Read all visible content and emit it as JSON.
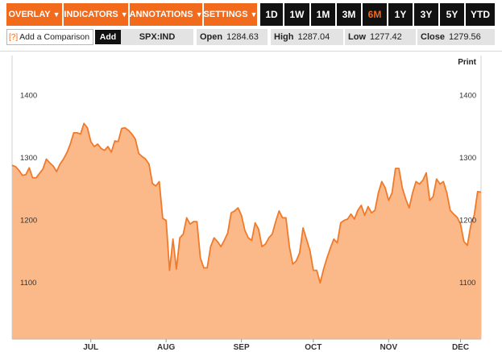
{
  "toolbar": {
    "overlay": "OVERLAY",
    "indicators": "INDICATORS",
    "annotations": "ANNOTATIONS",
    "settings": "SETTINGS",
    "caret": "▼",
    "ranges": [
      "1D",
      "1W",
      "1M",
      "3M",
      "6M",
      "1Y",
      "3Y",
      "5Y",
      "YTD"
    ],
    "active_range": "6M"
  },
  "infobar": {
    "help_mark": "[?]",
    "compare_placeholder": "Add a Comparison",
    "add_label": "Add",
    "ticker": "SPX:IND",
    "open_label": "Open",
    "open_value": "1284.63",
    "high_label": "High",
    "high_value": "1287.04",
    "low_label": "Low",
    "low_value": "1277.42",
    "close_label": "Close",
    "close_value": "1279.56"
  },
  "print_label": "Print",
  "colors": {
    "accent": "#f26a1b",
    "line": "#f07a2a",
    "fill": "#fbb98a",
    "toolbar_dark": "#111111",
    "info_gray": "#e3e3e3"
  },
  "chart_data": {
    "type": "area",
    "ylim": [
      1010,
      1470
    ],
    "yticks": [
      1100,
      1200,
      1300,
      1400
    ],
    "ytick_labels": [
      "1100",
      "1200",
      "1300",
      "1400"
    ],
    "xticks": [
      {
        "label": "JUL",
        "index": 23
      },
      {
        "label": "AUG",
        "index": 45
      },
      {
        "label": "SEP",
        "index": 67
      },
      {
        "label": "OCT",
        "index": 88
      },
      {
        "label": "NOV",
        "index": 110
      },
      {
        "label": "DEC",
        "index": 131
      }
    ],
    "grid": false,
    "values": [
      1288,
      1286,
      1280,
      1272,
      1273,
      1284,
      1268,
      1268,
      1275,
      1282,
      1298,
      1292,
      1287,
      1278,
      1290,
      1298,
      1308,
      1322,
      1340,
      1340,
      1338,
      1355,
      1348,
      1326,
      1318,
      1322,
      1315,
      1312,
      1318,
      1309,
      1327,
      1326,
      1347,
      1348,
      1344,
      1338,
      1330,
      1307,
      1302,
      1298,
      1290,
      1259,
      1255,
      1262,
      1203,
      1200,
      1120,
      1170,
      1122,
      1172,
      1178,
      1204,
      1194,
      1198,
      1198,
      1140,
      1124,
      1124,
      1158,
      1172,
      1166,
      1158,
      1168,
      1180,
      1212,
      1215,
      1220,
      1208,
      1184,
      1172,
      1168,
      1196,
      1186,
      1158,
      1162,
      1172,
      1178,
      1198,
      1215,
      1204,
      1204,
      1158,
      1130,
      1135,
      1148,
      1188,
      1170,
      1152,
      1120,
      1120,
      1100,
      1122,
      1140,
      1156,
      1170,
      1164,
      1196,
      1200,
      1202,
      1210,
      1202,
      1216,
      1224,
      1208,
      1222,
      1212,
      1216,
      1244,
      1262,
      1252,
      1232,
      1244,
      1283,
      1283,
      1252,
      1234,
      1220,
      1244,
      1262,
      1258,
      1264,
      1276,
      1232,
      1238,
      1266,
      1258,
      1262,
      1244,
      1216,
      1210,
      1205,
      1194,
      1166,
      1160,
      1192,
      1208,
      1246,
      1245
    ]
  }
}
